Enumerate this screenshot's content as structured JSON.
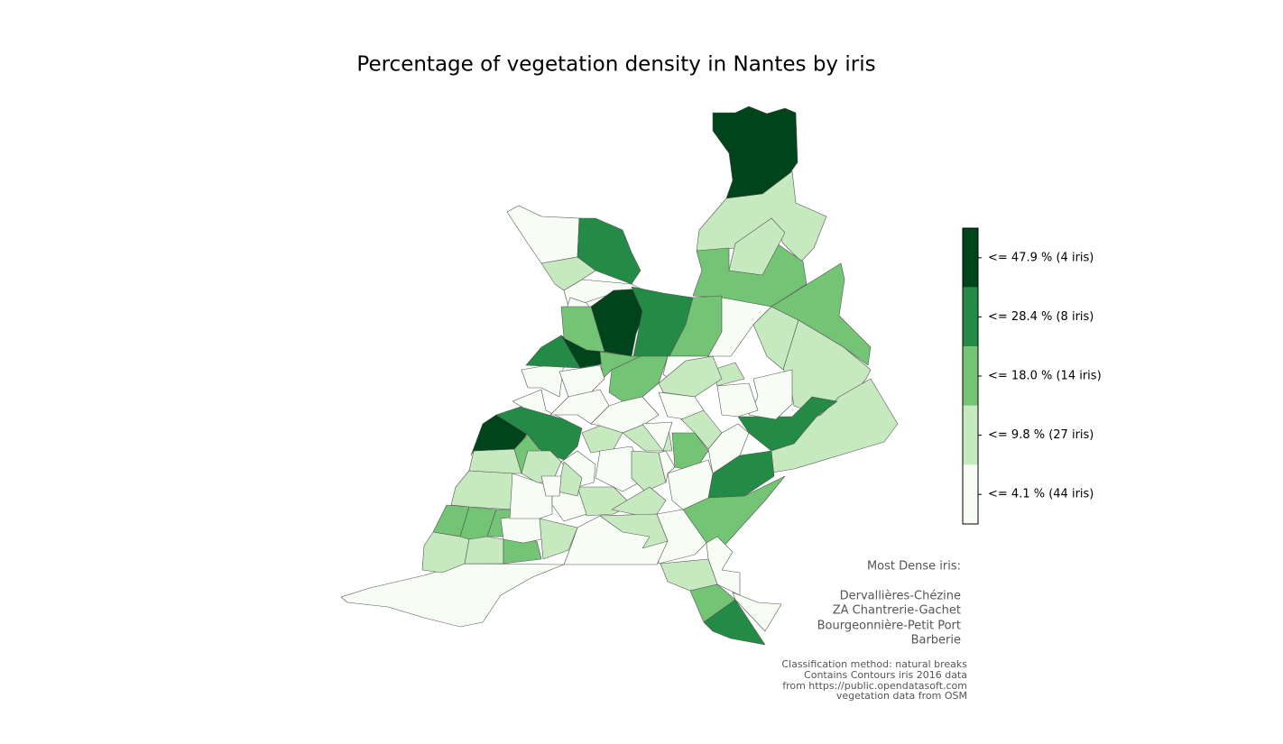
{
  "title": "Percentage of vegetation density in Nantes by iris",
  "legend": {
    "items": [
      {
        "label": "<= 47.9 % (4 iris)",
        "color": "#00441b"
      },
      {
        "label": "<= 28.4 % (8 iris)",
        "color": "#238b45"
      },
      {
        "label": "<= 18.0 % (14 iris)",
        "color": "#74c476"
      },
      {
        "label": "<= 9.8 % (27 iris)",
        "color": "#c7e9c0"
      },
      {
        "label": "<= 4.1 % (44 iris)",
        "color": "#f7fcf5"
      }
    ]
  },
  "annotation": {
    "heading": "Most Dense iris:",
    "names": [
      "Dervallières-Chézine",
      "ZA Chantrerie-Gachet",
      "Bourgeonnière-Petit Port",
      "Barberie"
    ]
  },
  "sources": [
    "Classification method: natural breaks",
    "Contains Contours iris 2016 data",
    "from https://public.opendatasoft.com",
    "vegetation data from OSM"
  ]
}
